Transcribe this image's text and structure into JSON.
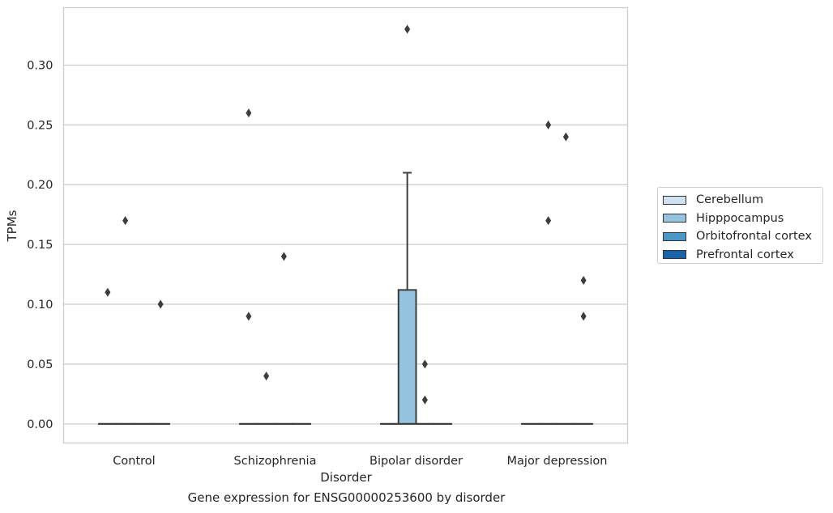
{
  "chart_data": {
    "type": "box",
    "title": "",
    "caption": "Gene expression for ENSG00000253600 by disorder",
    "xlabel": "Disorder",
    "ylabel": "TPMs",
    "ylim": [
      -0.016,
      0.348
    ],
    "yticks": [
      "0.00",
      "0.05",
      "0.10",
      "0.15",
      "0.20",
      "0.25",
      "0.30"
    ],
    "grid": true,
    "legend_position": "right",
    "categories": [
      "Control",
      "Schizophrenia",
      "Bipolar disorder",
      "Major depression"
    ],
    "series": [
      {
        "name": "Cerebellum",
        "color": "#d0e1f2"
      },
      {
        "name": "Hipppocampus",
        "color": "#94c4df"
      },
      {
        "name": "Orbitofrontal cortex",
        "color": "#4a98c9"
      },
      {
        "name": "Prefrontal cortex",
        "color": "#1764ab"
      }
    ],
    "boxes": [
      {
        "category": "Control",
        "series": "Cerebellum",
        "q1": 0,
        "median": 0,
        "q3": 0,
        "whisker_low": 0,
        "whisker_high": 0,
        "outliers": [
          0.11
        ]
      },
      {
        "category": "Control",
        "series": "Hipppocampus",
        "q1": 0,
        "median": 0,
        "q3": 0,
        "whisker_low": 0,
        "whisker_high": 0,
        "outliers": [
          0.17
        ]
      },
      {
        "category": "Control",
        "series": "Orbitofrontal cortex",
        "q1": 0,
        "median": 0,
        "q3": 0,
        "whisker_low": 0,
        "whisker_high": 0,
        "outliers": []
      },
      {
        "category": "Control",
        "series": "Prefrontal cortex",
        "q1": 0,
        "median": 0,
        "q3": 0,
        "whisker_low": 0,
        "whisker_high": 0,
        "outliers": [
          0.1
        ]
      },
      {
        "category": "Schizophrenia",
        "series": "Cerebellum",
        "q1": 0,
        "median": 0,
        "q3": 0,
        "whisker_low": 0,
        "whisker_high": 0,
        "outliers": [
          0.26,
          0.09
        ]
      },
      {
        "category": "Schizophrenia",
        "series": "Hipppocampus",
        "q1": 0,
        "median": 0,
        "q3": 0,
        "whisker_low": 0,
        "whisker_high": 0,
        "outliers": [
          0.04
        ]
      },
      {
        "category": "Schizophrenia",
        "series": "Orbitofrontal cortex",
        "q1": 0,
        "median": 0,
        "q3": 0,
        "whisker_low": 0,
        "whisker_high": 0,
        "outliers": [
          0.14
        ]
      },
      {
        "category": "Schizophrenia",
        "series": "Prefrontal cortex",
        "q1": 0,
        "median": 0,
        "q3": 0,
        "whisker_low": 0,
        "whisker_high": 0,
        "outliers": []
      },
      {
        "category": "Bipolar disorder",
        "series": "Cerebellum",
        "q1": 0,
        "median": 0,
        "q3": 0,
        "whisker_low": 0,
        "whisker_high": 0,
        "outliers": []
      },
      {
        "category": "Bipolar disorder",
        "series": "Hipppocampus",
        "q1": 0,
        "median": 0,
        "q3": 0.112,
        "whisker_low": 0,
        "whisker_high": 0.21,
        "outliers": [
          0.33
        ]
      },
      {
        "category": "Bipolar disorder",
        "series": "Orbitofrontal cortex",
        "q1": 0,
        "median": 0,
        "q3": 0,
        "whisker_low": 0,
        "whisker_high": 0,
        "outliers": [
          0.05,
          0.02
        ]
      },
      {
        "category": "Bipolar disorder",
        "series": "Prefrontal cortex",
        "q1": 0,
        "median": 0,
        "q3": 0,
        "whisker_low": 0,
        "whisker_high": 0,
        "outliers": []
      },
      {
        "category": "Major depression",
        "series": "Cerebellum",
        "q1": 0,
        "median": 0,
        "q3": 0,
        "whisker_low": 0,
        "whisker_high": 0,
        "outliers": []
      },
      {
        "category": "Major depression",
        "series": "Hipppocampus",
        "q1": 0,
        "median": 0,
        "q3": 0,
        "whisker_low": 0,
        "whisker_high": 0,
        "outliers": [
          0.25,
          0.17
        ]
      },
      {
        "category": "Major depression",
        "series": "Orbitofrontal cortex",
        "q1": 0,
        "median": 0,
        "q3": 0,
        "whisker_low": 0,
        "whisker_high": 0,
        "outliers": [
          0.24
        ]
      },
      {
        "category": "Major depression",
        "series": "Prefrontal cortex",
        "q1": 0,
        "median": 0,
        "q3": 0,
        "whisker_low": 0,
        "whisker_high": 0,
        "outliers": [
          0.12,
          0.09
        ]
      }
    ]
  }
}
